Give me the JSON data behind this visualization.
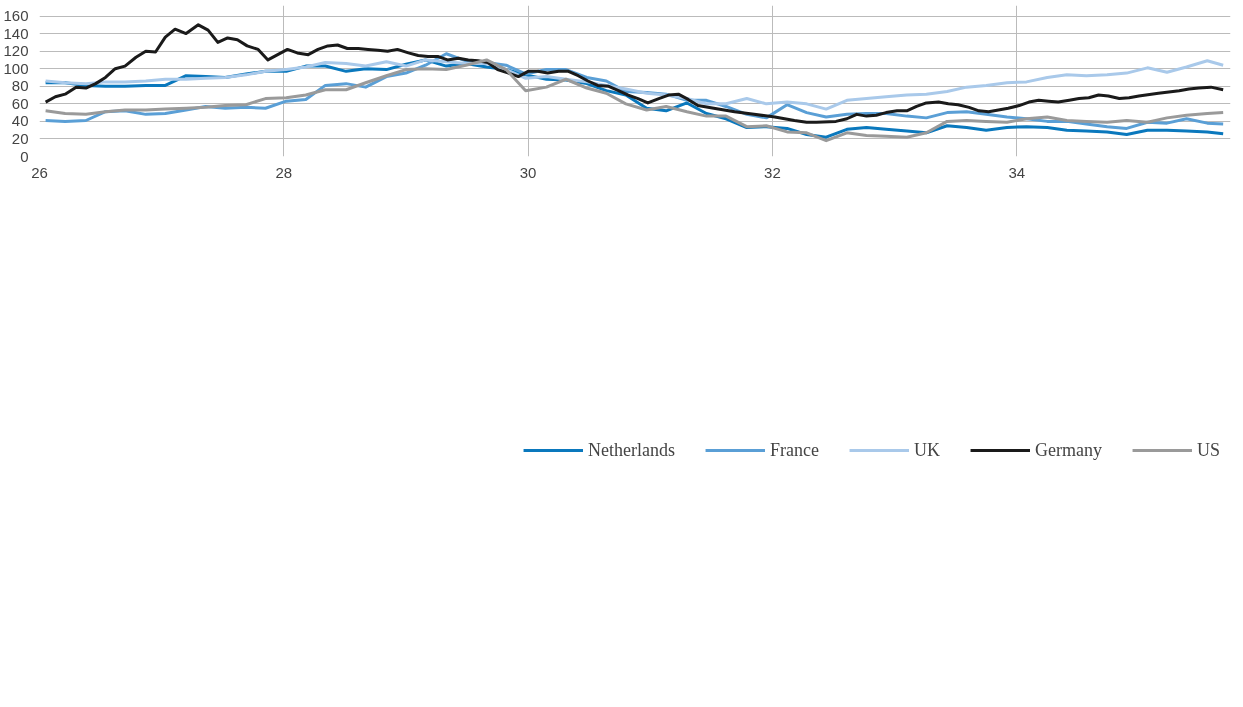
{
  "chart_data": {
    "type": "line",
    "xlim": [
      26,
      35.75
    ],
    "ylim": [
      0,
      172
    ],
    "xticks": [
      26,
      28,
      30,
      32,
      34
    ],
    "yticks": [
      0,
      20,
      40,
      60,
      80,
      100,
      120,
      140,
      160
    ],
    "grid": true,
    "legend": "bottom",
    "marker": "none",
    "line_style": "solid",
    "x": [
      26.05,
      26.21,
      26.38,
      26.54,
      26.7,
      26.87,
      27.03,
      27.2,
      27.36,
      27.52,
      27.69,
      27.85,
      28.02,
      28.18,
      28.34,
      28.51,
      28.67,
      28.84,
      29.0,
      29.16,
      29.33,
      29.49,
      29.66,
      29.82,
      29.98,
      30.15,
      30.31,
      30.48,
      30.64,
      30.8,
      30.97,
      31.13,
      31.3,
      31.46,
      31.62,
      31.79,
      31.95,
      32.12,
      32.28,
      32.44,
      32.61,
      32.77,
      32.93,
      33.1,
      33.26,
      33.43,
      33.59,
      33.75,
      33.92,
      34.08,
      34.25,
      34.41,
      34.57,
      34.74,
      34.9,
      35.07,
      35.23,
      35.39,
      35.56,
      35.69
    ],
    "series": [
      {
        "name": "Netherlands",
        "color": "#0a78bd",
        "values": [
          84,
          84,
          81,
          80,
          80,
          81,
          81,
          92,
          91,
          90,
          94,
          97,
          97,
          103,
          103,
          97,
          100,
          99,
          105,
          110,
          103,
          106,
          102,
          99,
          93,
          88,
          87,
          83,
          75,
          70,
          55,
          52,
          61,
          49,
          43,
          33,
          34,
          32,
          25,
          22,
          31,
          33,
          31,
          29,
          27,
          35,
          33,
          30,
          33,
          34,
          33,
          30,
          29,
          28,
          25,
          30,
          30,
          29,
          28,
          26
        ]
      },
      {
        "name": "France",
        "color": "#5a9fd6",
        "values": [
          41,
          40,
          41,
          51,
          52,
          48,
          49,
          53,
          57,
          55,
          56,
          55,
          63,
          65,
          81,
          83,
          79,
          91,
          95,
          104,
          117,
          109,
          107,
          104,
          94,
          99,
          99,
          90,
          86,
          74,
          73,
          71,
          64,
          64,
          57,
          48,
          44,
          59,
          50,
          45,
          48,
          49,
          49,
          46,
          44,
          50,
          51,
          48,
          45,
          43,
          40,
          40,
          37,
          34,
          32,
          39,
          38,
          43,
          38,
          37
        ]
      },
      {
        "name": "UK",
        "color": "#a9c9ea",
        "values": [
          86,
          84,
          83,
          85,
          85,
          86,
          88,
          88,
          89,
          90,
          93,
          97,
          99,
          102,
          107,
          106,
          103,
          108,
          103,
          110,
          108,
          106,
          106,
          99,
          89,
          91,
          88,
          85,
          81,
          77,
          72,
          70,
          66,
          60,
          60,
          66,
          60,
          62,
          60,
          54,
          64,
          66,
          68,
          70,
          71,
          74,
          79,
          81,
          84,
          85,
          90,
          93,
          92,
          93,
          95,
          101,
          96,
          102,
          109,
          104
        ]
      },
      {
        "name": "Germany",
        "color": "#1a1a1a",
        "x": [
          26.05,
          26.13,
          26.21,
          26.3,
          26.38,
          26.46,
          26.54,
          26.62,
          26.7,
          26.79,
          26.87,
          26.95,
          27.03,
          27.11,
          27.2,
          27.3,
          27.38,
          27.46,
          27.54,
          27.62,
          27.7,
          27.79,
          27.87,
          27.95,
          28.03,
          28.11,
          28.2,
          28.28,
          28.36,
          28.44,
          28.52,
          28.61,
          28.69,
          28.77,
          28.85,
          28.93,
          29.02,
          29.1,
          29.18,
          29.26,
          29.34,
          29.43,
          29.51,
          29.59,
          29.67,
          29.75,
          29.84,
          29.92,
          30.0,
          30.08,
          30.16,
          30.25,
          30.33,
          30.41,
          30.49,
          30.57,
          30.66,
          30.74,
          30.82,
          30.9,
          30.98,
          31.07,
          31.15,
          31.23,
          31.31,
          31.39,
          31.52,
          31.69,
          31.85,
          32.02,
          32.18,
          32.28,
          32.36,
          32.52,
          32.61,
          32.69,
          32.77,
          32.85,
          32.93,
          33.02,
          33.1,
          33.18,
          33.26,
          33.36,
          33.44,
          33.52,
          33.61,
          33.69,
          33.77,
          33.85,
          33.93,
          34.02,
          34.1,
          34.18,
          34.26,
          34.34,
          34.43,
          34.51,
          34.59,
          34.67,
          34.75,
          34.84,
          34.92,
          35.0,
          35.16,
          35.33,
          35.41,
          35.49,
          35.59,
          35.69
        ],
        "values": [
          62,
          68,
          71,
          79,
          78,
          83,
          90,
          100,
          103,
          113,
          120,
          119,
          136,
          145,
          140,
          150,
          144,
          130,
          135,
          133,
          126,
          122,
          110,
          116,
          122,
          118,
          116,
          122,
          126,
          127,
          123,
          123,
          122,
          121,
          120,
          122,
          118,
          115,
          114,
          114,
          110,
          112,
          110,
          109,
          107,
          99,
          95,
          91,
          97,
          97,
          95,
          97,
          97,
          92,
          86,
          81,
          80,
          75,
          70,
          66,
          61,
          66,
          70,
          71,
          65,
          58,
          55,
          51,
          48,
          45,
          41,
          39,
          39,
          40,
          43,
          48,
          46,
          47,
          50,
          52,
          52,
          57,
          61,
          62,
          60,
          59,
          56,
          52,
          51,
          53,
          55,
          58,
          62,
          64,
          63,
          62,
          64,
          66,
          67,
          70,
          69,
          66,
          67,
          69,
          72,
          75,
          77,
          78,
          79,
          76
        ]
      },
      {
        "name": "US",
        "color": "#9a9a9a",
        "values": [
          52,
          49,
          48,
          51,
          53,
          53,
          54,
          55,
          56,
          58,
          59,
          66,
          67,
          70,
          76,
          76,
          84,
          92,
          99,
          100,
          99,
          104,
          110,
          99,
          75,
          79,
          88,
          78,
          72,
          60,
          53,
          57,
          51,
          46,
          46,
          34,
          35,
          28,
          27,
          18,
          27,
          24,
          23,
          22,
          27,
          40,
          41,
          40,
          39,
          43,
          45,
          41,
          40,
          39,
          41,
          39,
          44,
          47,
          49,
          50
        ]
      }
    ]
  }
}
